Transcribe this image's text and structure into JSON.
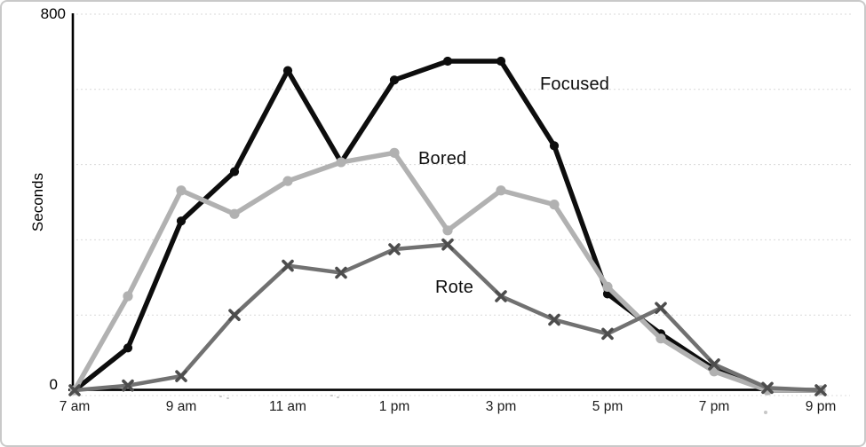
{
  "axis": {
    "y_max_label": "800",
    "y_min_label": "0",
    "y_title": "Seconds"
  },
  "chart_data": {
    "type": "line",
    "title": "",
    "ylabel": "Seconds",
    "ylim": [
      0,
      800
    ],
    "y_axis_labels_shown": [
      "0",
      "800"
    ],
    "gridline_values": [
      160,
      320,
      480,
      640,
      800
    ],
    "grid": "dotted-light-gray-horizontal",
    "legend_position": "inline-annotations",
    "categories": [
      "7 am",
      "8 am",
      "9 am",
      "10 am",
      "11 am",
      "12 pm",
      "1 pm",
      "2 pm",
      "3 pm",
      "4 pm",
      "5 pm",
      "6 pm",
      "7 pm",
      "8 pm",
      "9 pm"
    ],
    "x_tick_labels_shown": [
      "7 am",
      "9 am",
      "11 am",
      "1 pm",
      "3 pm",
      "5 pm",
      "7 pm",
      "9 pm"
    ],
    "series": [
      {
        "name": "Focused",
        "color": "#0d0d0d",
        "marker": "circle",
        "marker_color": "#0d0d0d",
        "values": [
          0,
          90,
          360,
          465,
          680,
          485,
          660,
          700,
          700,
          520,
          205,
          120,
          45,
          0,
          0
        ]
      },
      {
        "name": "Bored",
        "color": "#b1b1b1",
        "marker": "circle",
        "marker_color": "#b1b1b1",
        "values": [
          0,
          200,
          425,
          375,
          445,
          485,
          505,
          340,
          425,
          395,
          220,
          110,
          40,
          0,
          0
        ]
      },
      {
        "name": "Rote",
        "color": "#717171",
        "marker": "x",
        "marker_color": "#4d4d4d",
        "values": [
          0,
          10,
          30,
          160,
          265,
          250,
          300,
          310,
          200,
          150,
          120,
          175,
          55,
          5,
          0
        ]
      }
    ]
  }
}
